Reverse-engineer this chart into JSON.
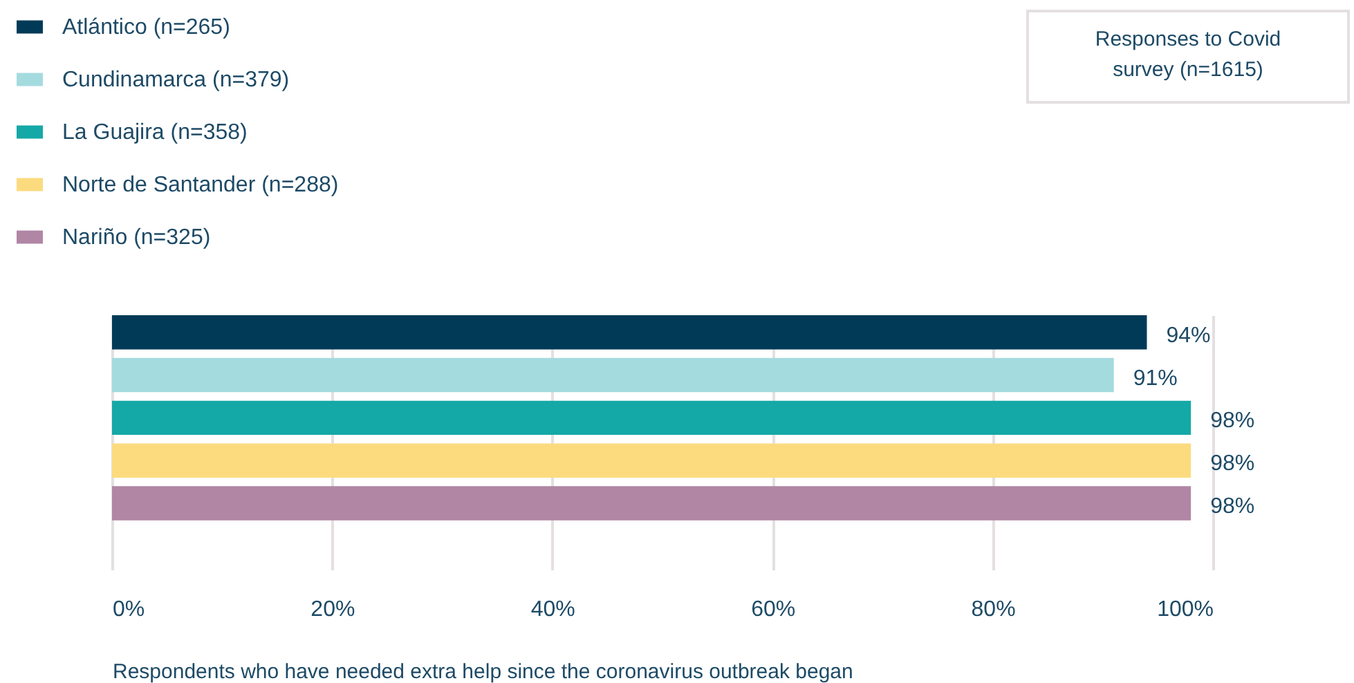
{
  "chart_data": {
    "type": "bar",
    "orientation": "horizontal",
    "categories": [
      null
    ],
    "series": [
      {
        "name": "Atlántico (n=265)",
        "color": "#003a57",
        "values": [
          94
        ],
        "value_labels": [
          "94%"
        ]
      },
      {
        "name": "Cundinamarca (n=379)",
        "color": "#a4dbdf",
        "values": [
          91
        ],
        "value_labels": [
          "91%"
        ]
      },
      {
        "name": "La Guajira (n=358)",
        "color": "#14a8a6",
        "values": [
          98
        ],
        "value_labels": [
          "98%"
        ]
      },
      {
        "name": "Norte de Santander (n=288)",
        "color": "#fcdb7f",
        "values": [
          98
        ],
        "value_labels": [
          "98%"
        ]
      },
      {
        "name": "Nariño (n=325)",
        "color": "#b086a4",
        "values": [
          98
        ],
        "value_labels": [
          "98%"
        ]
      }
    ],
    "xlim": [
      0,
      100
    ],
    "xticks": [
      {
        "value": 0,
        "label": "0%"
      },
      {
        "value": 20,
        "label": "20%"
      },
      {
        "value": 40,
        "label": "40%"
      },
      {
        "value": 60,
        "label": "60%"
      },
      {
        "value": 80,
        "label": "80%"
      },
      {
        "value": 100,
        "label": "100%"
      }
    ],
    "xlabel": "Respondents who have needed extra help since the coronavirus outbreak began",
    "annotations": [
      "Responses to Covid survey (n=1615)"
    ],
    "grid": "x",
    "legend": "top left"
  }
}
